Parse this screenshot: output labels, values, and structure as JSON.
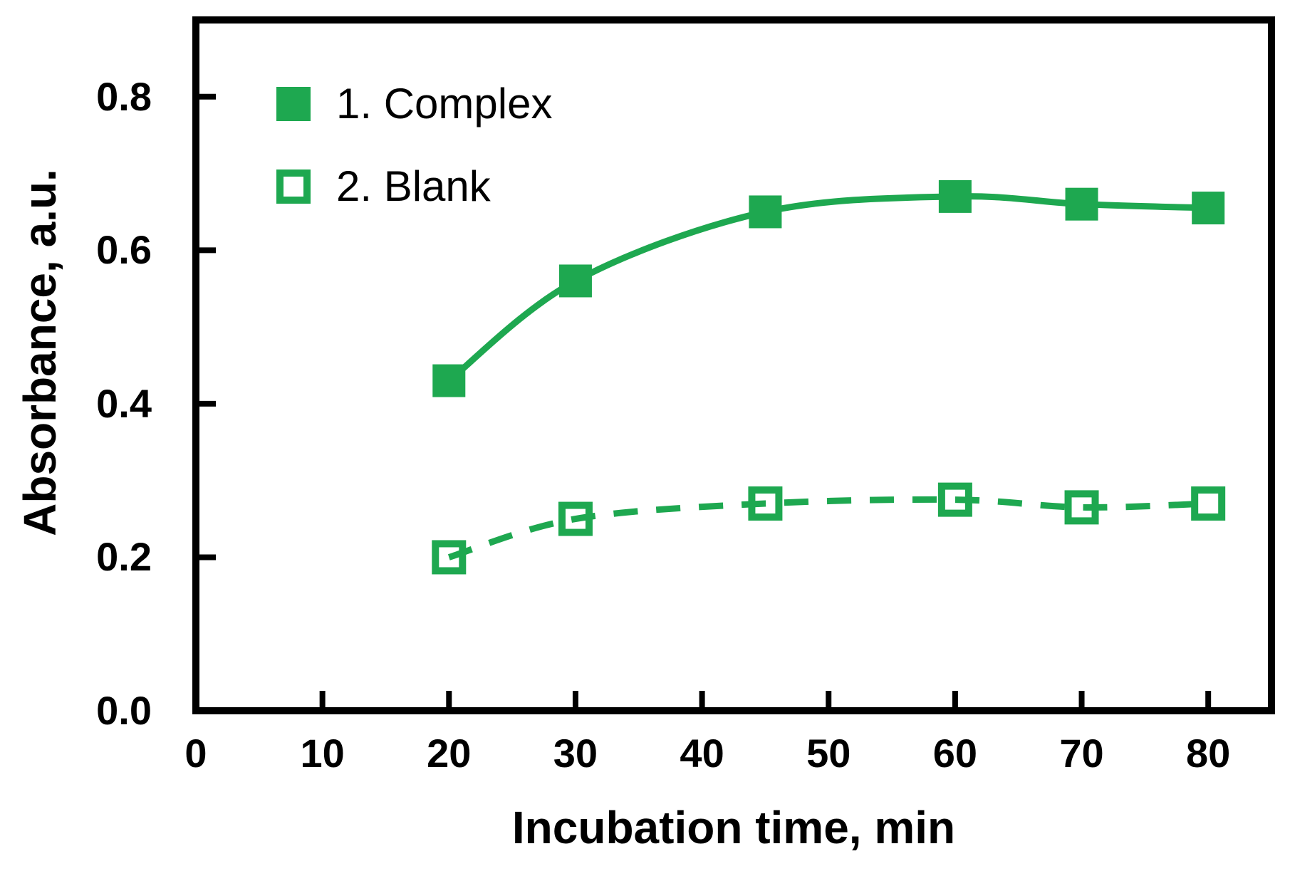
{
  "figure": {
    "colors": {
      "accent": "#1ea850",
      "axis": "#000000",
      "background": "#ffffff"
    }
  },
  "chart_data": {
    "type": "line",
    "title": "",
    "xlabel": "Incubation time, min",
    "ylabel": "Absorbance, a.u.",
    "xlim": [
      0,
      85
    ],
    "ylim": [
      0,
      0.9
    ],
    "grid": false,
    "legend_position": "top-left-inside",
    "x_tick_labels": [
      "0",
      "10",
      "20",
      "30",
      "40",
      "50",
      "60",
      "70",
      "80"
    ],
    "x_tick_values": [
      0,
      10,
      20,
      30,
      40,
      50,
      60,
      70,
      80
    ],
    "y_tick_labels": [
      "0.0",
      "0.2",
      "0.4",
      "0.6",
      "0.8"
    ],
    "y_tick_values": [
      0.0,
      0.2,
      0.4,
      0.6,
      0.8
    ],
    "x": [
      20,
      30,
      45,
      60,
      70,
      80
    ],
    "series": [
      {
        "name": "1. Complex",
        "marker": "filled-square",
        "line": "solid",
        "color": "#1ea850",
        "values": [
          0.43,
          0.56,
          0.65,
          0.67,
          0.66,
          0.655
        ]
      },
      {
        "name": "2. Blank",
        "marker": "open-square",
        "line": "dashed",
        "color": "#1ea850",
        "values": [
          0.2,
          0.25,
          0.27,
          0.275,
          0.265,
          0.27
        ]
      }
    ]
  }
}
